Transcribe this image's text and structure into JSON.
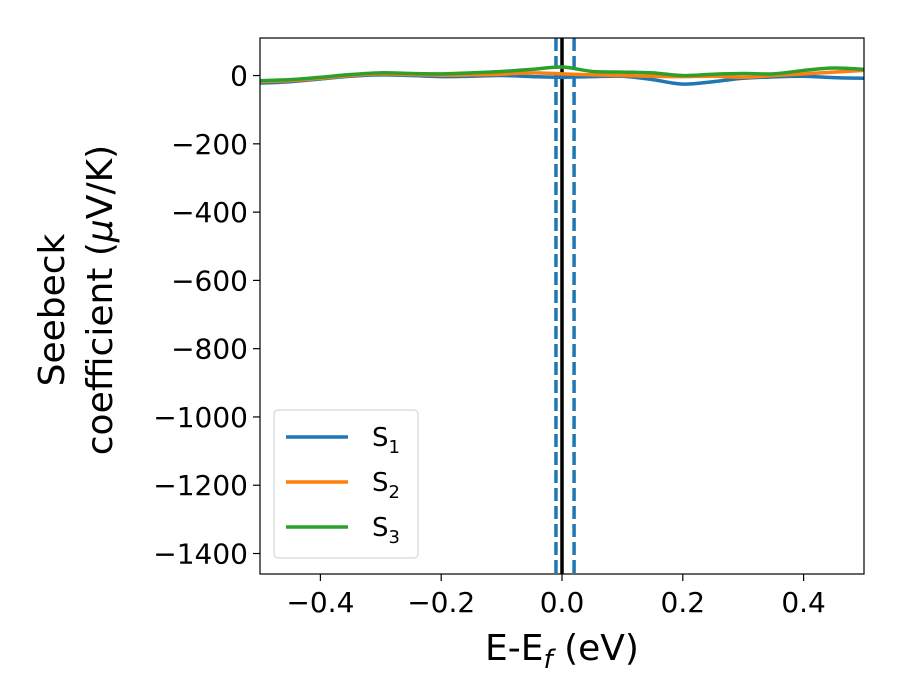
{
  "chart_data": {
    "type": "line",
    "xlabel": {
      "main": "E-E",
      "sub": "f",
      "unit": " (eV)"
    },
    "ylabel": {
      "line1": "Seebeck",
      "line2_prefix": "coefficient  (",
      "mu": "μ",
      "line2_suffix": "V/K)"
    },
    "xlim": [
      -0.5,
      0.5
    ],
    "ylim": [
      -1460,
      110
    ],
    "xticks": [
      -0.4,
      -0.2,
      0.0,
      0.2,
      0.4
    ],
    "xtick_labels": [
      "−0.4",
      "−0.2",
      "0.0",
      "0.2",
      "0.4"
    ],
    "yticks": [
      0,
      -200,
      -400,
      -600,
      -800,
      -1000,
      -1200,
      -1400
    ],
    "ytick_labels": [
      "0",
      "−200",
      "−400",
      "−600",
      "−800",
      "−1000",
      "−1200",
      "−1400"
    ],
    "legend_position": "lower-left",
    "vlines": [
      {
        "x": 0.0,
        "color": "#000000",
        "style": "solid"
      },
      {
        "x": -0.01,
        "color": "#1f77b4",
        "style": "dashed"
      },
      {
        "x": 0.02,
        "color": "#1f77b4",
        "style": "dashed"
      }
    ],
    "series": [
      {
        "name": "S",
        "sub": "1",
        "color": "#1f77b4",
        "x": [
          -0.5,
          -0.45,
          -0.4,
          -0.35,
          -0.3,
          -0.25,
          -0.2,
          -0.15,
          -0.1,
          -0.05,
          0.0,
          0.05,
          0.1,
          0.15,
          0.2,
          0.25,
          0.3,
          0.35,
          0.4,
          0.45,
          0.5
        ],
        "y": [
          -22,
          -18,
          -10,
          -2,
          2,
          0,
          -3,
          -2,
          0,
          -3,
          -5,
          -3,
          -2,
          -12,
          -25,
          -18,
          -8,
          -4,
          -2,
          -6,
          -8
        ]
      },
      {
        "name": "S",
        "sub": "2",
        "color": "#ff7f0e",
        "x": [
          -0.5,
          -0.45,
          -0.4,
          -0.35,
          -0.3,
          -0.25,
          -0.2,
          -0.15,
          -0.1,
          -0.05,
          0.0,
          0.05,
          0.1,
          0.15,
          0.2,
          0.25,
          0.3,
          0.35,
          0.4,
          0.45,
          0.5
        ],
        "y": [
          -18,
          -15,
          -8,
          0,
          5,
          3,
          1,
          2,
          4,
          8,
          5,
          2,
          0,
          -2,
          -3,
          -2,
          -5,
          0,
          5,
          10,
          15
        ]
      },
      {
        "name": "S",
        "sub": "3",
        "color": "#2ca02c",
        "x": [
          -0.5,
          -0.45,
          -0.4,
          -0.35,
          -0.3,
          -0.25,
          -0.2,
          -0.15,
          -0.1,
          -0.05,
          0.0,
          0.05,
          0.1,
          0.15,
          0.2,
          0.25,
          0.3,
          0.35,
          0.4,
          0.45,
          0.5
        ],
        "y": [
          -15,
          -12,
          -5,
          3,
          8,
          6,
          5,
          8,
          12,
          18,
          25,
          12,
          10,
          8,
          0,
          4,
          6,
          5,
          15,
          22,
          18
        ]
      }
    ]
  }
}
